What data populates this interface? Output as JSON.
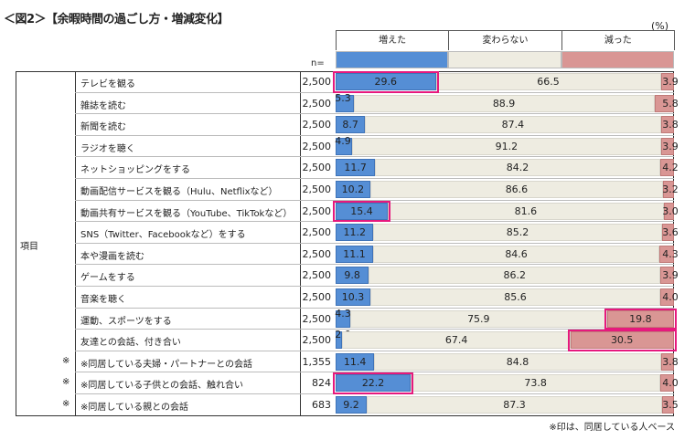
{
  "title": "＜図2＞【余暇時間の過ごし方・増減変化】",
  "unit": "(%)",
  "n_label": "n=",
  "row_group_label": "項目",
  "footnote": "※印は、同居している人ベース",
  "colors": {
    "increased": "#558ed5",
    "unchanged": "#eeece1",
    "decreased": "#d99694",
    "highlight": "#e6197d"
  },
  "chart_data": {
    "type": "bar",
    "stacked": true,
    "orientation": "horizontal",
    "xlim": [
      0,
      100
    ],
    "series_names": [
      "増えた",
      "変わらない",
      "減った"
    ],
    "categories": [
      "テレビを観る",
      "雑誌を読む",
      "新聞を読む",
      "ラジオを聴く",
      "ネットショッピングをする",
      "動画配信サービスを観る（Hulu、Netflixなど）",
      "動画共有サービスを観る（YouTube、TikTokなど）",
      "SNS（Twitter、Facebookなど）をする",
      "本や漫画を読む",
      "ゲームをする",
      "音楽を聴く",
      "運動、スポーツをする",
      "友達との会話、付き合い",
      "※同居している夫婦・パートナーとの会話",
      "※同居している子供との会話、触れ合い",
      "※同居している親との会話"
    ],
    "marks": [
      "",
      "",
      "",
      "",
      "",
      "",
      "",
      "",
      "",
      "",
      "",
      "",
      "",
      "※",
      "※",
      "※"
    ],
    "n": [
      "2,500",
      "2,500",
      "2,500",
      "2,500",
      "2,500",
      "2,500",
      "2,500",
      "2,500",
      "2,500",
      "2,500",
      "2,500",
      "2,500",
      "2,500",
      "1,355",
      "824",
      "683"
    ],
    "series": [
      {
        "name": "増えた",
        "values": [
          29.6,
          5.3,
          8.7,
          4.9,
          11.7,
          10.2,
          15.4,
          11.2,
          11.1,
          9.8,
          10.3,
          4.3,
          2.0,
          11.4,
          22.2,
          9.2
        ]
      },
      {
        "name": "変わらない",
        "values": [
          66.5,
          88.9,
          87.4,
          91.2,
          84.2,
          86.6,
          81.6,
          85.2,
          84.6,
          86.2,
          85.6,
          75.9,
          67.4,
          84.8,
          73.8,
          87.3
        ]
      },
      {
        "name": "減った",
        "values": [
          3.9,
          5.8,
          3.8,
          3.9,
          4.2,
          3.2,
          3.0,
          3.6,
          4.3,
          3.9,
          4.0,
          19.8,
          30.5,
          3.8,
          4.0,
          3.5
        ]
      }
    ],
    "highlights": [
      {
        "row": 0,
        "series": 0
      },
      {
        "row": 6,
        "series": 0
      },
      {
        "row": 11,
        "series": 2
      },
      {
        "row": 12,
        "series": 2
      },
      {
        "row": 14,
        "series": 0
      }
    ]
  }
}
